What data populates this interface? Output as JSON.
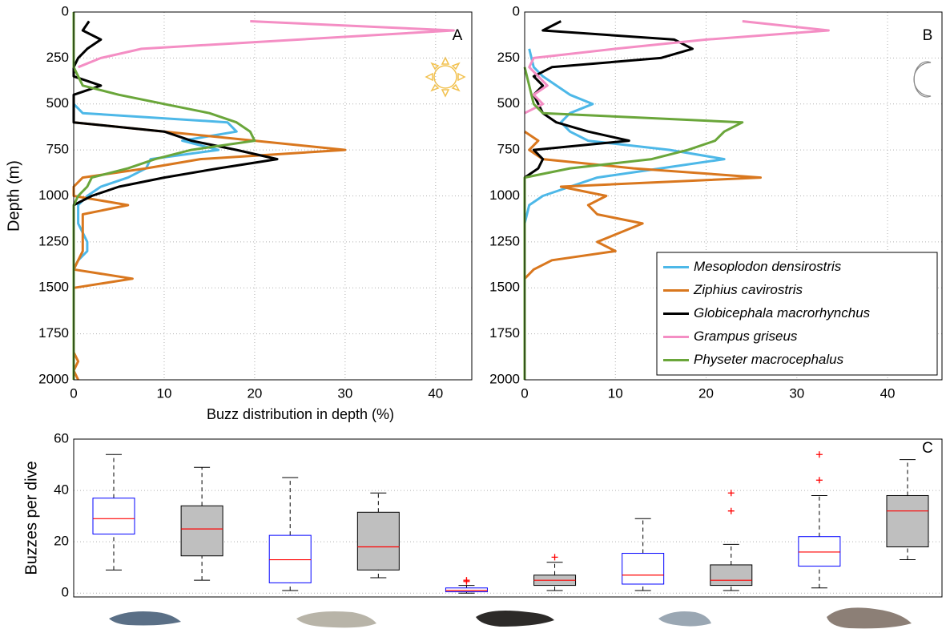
{
  "chart_data": [
    {
      "type": "line",
      "label": "A",
      "xlabel": "Buzz distribution in depth (%)",
      "ylabel": "Depth (m)",
      "xlim": [
        0,
        44
      ],
      "xticks": [
        0,
        10,
        20,
        30,
        40
      ],
      "ylim": [
        0,
        2000
      ],
      "invert_y": true,
      "yticks": [
        0,
        250,
        500,
        750,
        1000,
        1250,
        1500,
        1750,
        2000
      ],
      "grid": true,
      "series": [
        {
          "color": "#4db8e8",
          "depth": [
            500,
            550,
            600,
            650,
            700,
            750,
            800,
            850,
            900,
            950,
            1000,
            1050,
            1100,
            1150,
            1200,
            1250,
            1300,
            1350,
            1400,
            2000
          ],
          "values": [
            0,
            1,
            17,
            18,
            12,
            16,
            8.5,
            8,
            6,
            3,
            1.5,
            0.5,
            0.5,
            0.5,
            1,
            1.5,
            1.5,
            0.5,
            0,
            0
          ]
        },
        {
          "color": "#d9771e",
          "depth": [
            600,
            650,
            700,
            750,
            800,
            850,
            900,
            950,
            1000,
            1050,
            1100,
            1150,
            1200,
            1250,
            1300,
            1350,
            1400,
            1450,
            1500,
            1850,
            1900,
            1950,
            2000
          ],
          "values": [
            0,
            10,
            20,
            30,
            14,
            8,
            1,
            0,
            0,
            6,
            1,
            1,
            1,
            1,
            1,
            0.5,
            0,
            6.5,
            0,
            0,
            0.5,
            0,
            0.5
          ]
        },
        {
          "color": "#000000",
          "depth": [
            50,
            100,
            150,
            200,
            250,
            300,
            350,
            400,
            450,
            500,
            550,
            600,
            650,
            700,
            750,
            800,
            850,
            900,
            950,
            1000,
            1050
          ],
          "values": [
            1.7,
            1,
            3,
            1.5,
            0.5,
            0,
            0,
            3,
            0,
            0,
            0,
            0,
            10,
            13,
            18,
            22.5,
            16,
            10,
            5,
            2,
            0
          ]
        },
        {
          "color": "#f48ec4",
          "depth": [
            50,
            100,
            200,
            250,
            300
          ],
          "values": [
            19.5,
            42,
            7.5,
            3,
            0.5
          ]
        },
        {
          "color": "#6aa63a",
          "depth": [
            0,
            300,
            350,
            400,
            450,
            500,
            550,
            600,
            650,
            700,
            750,
            800,
            850,
            900,
            950,
            1000,
            1050,
            2000
          ],
          "values": [
            0,
            0,
            0.5,
            1,
            5,
            10,
            15,
            18,
            19.5,
            20,
            13,
            9,
            6,
            2,
            1.5,
            0.5,
            0,
            0
          ]
        }
      ]
    },
    {
      "type": "line",
      "label": "B",
      "xlim": [
        0,
        46
      ],
      "xticks": [
        0,
        10,
        20,
        30,
        40
      ],
      "ylim": [
        0,
        2000
      ],
      "invert_y": true,
      "yticks": [
        0,
        250,
        500,
        750,
        1000,
        1250,
        1500,
        1750,
        2000
      ],
      "grid": true,
      "legend": "lower right",
      "series": [
        {
          "name": "Mesoplodon densirostris",
          "color": "#4db8e8",
          "depth": [
            200,
            300,
            350,
            400,
            450,
            500,
            550,
            600,
            650,
            700,
            750,
            800,
            850,
            900,
            950,
            1000,
            1050,
            1150,
            2000
          ],
          "values": [
            0.5,
            1,
            2,
            3.5,
            5,
            7.5,
            5,
            4,
            5,
            7,
            16,
            22,
            15,
            8,
            5,
            2,
            0.5,
            0,
            0
          ]
        },
        {
          "name": "Ziphius cavirostris",
          "color": "#d9771e",
          "depth": [
            650,
            700,
            750,
            800,
            850,
            900,
            950,
            1000,
            1050,
            1100,
            1150,
            1250,
            1300,
            1350,
            1400,
            1450,
            2000
          ],
          "values": [
            0,
            1.5,
            0.5,
            2,
            12,
            26,
            4,
            9,
            7,
            8,
            13,
            8,
            10,
            3,
            1,
            0,
            0
          ]
        },
        {
          "name": "Globicephala macrorhynchus",
          "color": "#000000",
          "depth": [
            50,
            100,
            150,
            200,
            250,
            300,
            350,
            400,
            450,
            500,
            550,
            600,
            650,
            700,
            750,
            800,
            850,
            900
          ],
          "values": [
            4,
            2,
            16.5,
            18.5,
            15,
            3,
            1,
            2,
            1,
            1.5,
            2,
            3.5,
            7,
            11.5,
            1,
            2,
            1.5,
            0
          ]
        },
        {
          "name": "Grampus griseus",
          "color": "#f48ec4",
          "depth": [
            50,
            100,
            150,
            200,
            250,
            300,
            350,
            400,
            450,
            500,
            550
          ],
          "values": [
            24,
            33.5,
            20,
            10,
            1,
            0.5,
            1.5,
            2.5,
            1,
            2,
            0
          ]
        },
        {
          "name": "Physeter macrocephalus",
          "color": "#6aa63a",
          "depth": [
            300,
            400,
            500,
            550,
            600,
            650,
            700,
            750,
            800,
            850,
            900,
            2000
          ],
          "values": [
            0,
            0.5,
            1,
            2,
            24,
            22,
            21,
            18,
            14,
            5,
            0,
            0
          ]
        }
      ]
    },
    {
      "type": "box",
      "label": "C",
      "ylabel": "Buzzes per dive",
      "ylim": [
        -1.5,
        60
      ],
      "yticks": [
        0,
        20,
        40,
        60
      ],
      "grid": true,
      "median_color": "#ff0000",
      "flier_color": "#ff0000",
      "boxes": [
        {
          "whislo": 9,
          "q1": 23,
          "med": 29,
          "q3": 37,
          "whishi": 54,
          "fliers": [],
          "facecolor": "#ffffff",
          "edgecolor": "#0000ff"
        },
        {
          "whislo": 5,
          "q1": 14.5,
          "med": 25,
          "q3": 34,
          "whishi": 49,
          "fliers": [],
          "facecolor": "#bfbfbf",
          "edgecolor": "#000000"
        },
        {
          "whislo": 1,
          "q1": 4,
          "med": 13,
          "q3": 22.5,
          "whishi": 45,
          "fliers": [],
          "facecolor": "#ffffff",
          "edgecolor": "#0000ff"
        },
        {
          "whislo": 6,
          "q1": 9,
          "med": 18,
          "q3": 31.5,
          "whishi": 39,
          "fliers": [],
          "facecolor": "#bfbfbf",
          "edgecolor": "#000000"
        },
        {
          "whislo": 0,
          "q1": 0.5,
          "med": 1,
          "q3": 2,
          "whishi": 3,
          "fliers": [
            4.5,
            5
          ],
          "facecolor": "#ffffff",
          "edgecolor": "#0000ff"
        },
        {
          "whislo": 1,
          "q1": 3,
          "med": 5,
          "q3": 7,
          "whishi": 12,
          "fliers": [
            14
          ],
          "facecolor": "#bfbfbf",
          "edgecolor": "#000000"
        },
        {
          "whislo": 1,
          "q1": 3.5,
          "med": 7,
          "q3": 15.5,
          "whishi": 29,
          "fliers": [],
          "facecolor": "#ffffff",
          "edgecolor": "#0000ff"
        },
        {
          "whislo": 1,
          "q1": 3,
          "med": 5,
          "q3": 11,
          "whishi": 19,
          "fliers": [
            32,
            39
          ],
          "facecolor": "#bfbfbf",
          "edgecolor": "#000000"
        },
        {
          "whislo": 2,
          "q1": 10.5,
          "med": 16,
          "q3": 22,
          "whishi": 38,
          "fliers": [
            44,
            54
          ],
          "facecolor": "#ffffff",
          "edgecolor": "#0000ff"
        },
        {
          "whislo": 13,
          "q1": 18,
          "med": 32,
          "q3": 38,
          "whishi": 52,
          "fliers": [],
          "facecolor": "#bfbfbf",
          "edgecolor": "#000000"
        }
      ]
    }
  ]
}
